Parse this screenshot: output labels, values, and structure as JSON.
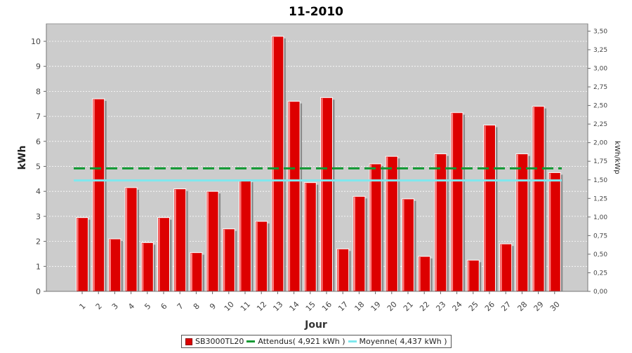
{
  "chart_data": {
    "type": "bar",
    "title": "11-2010",
    "xlabel": "Jour",
    "ylabel": "kWh",
    "y2label": "kWh/kWp",
    "ylim": [
      0,
      10.7
    ],
    "y2lim": [
      0,
      3.5982
    ],
    "yticks": [
      "0",
      "1",
      "2",
      "3",
      "4",
      "5",
      "6",
      "7",
      "8",
      "9",
      "10"
    ],
    "y2ticks": [
      "0,00",
      "0,25",
      "0,50",
      "0,75",
      "1,00",
      "1,25",
      "1,50",
      "1,75",
      "2,00",
      "2,25",
      "2,50",
      "2,75",
      "3,00",
      "3,25",
      "3,50"
    ],
    "categories": [
      "1",
      "2",
      "3",
      "4",
      "5",
      "6",
      "7",
      "8",
      "9",
      "10",
      "11",
      "12",
      "13",
      "14",
      "15",
      "16",
      "17",
      "18",
      "19",
      "20",
      "21",
      "22",
      "23",
      "24",
      "25",
      "26",
      "27",
      "28",
      "29",
      "30"
    ],
    "series": [
      {
        "name": "SB3000TL20",
        "values": [
          2.95,
          7.7,
          2.1,
          4.15,
          1.95,
          2.95,
          4.1,
          1.55,
          4.0,
          2.5,
          4.45,
          2.8,
          10.2,
          7.6,
          4.35,
          7.75,
          1.7,
          3.8,
          5.1,
          5.4,
          3.7,
          1.4,
          5.5,
          7.15,
          1.25,
          6.65,
          1.9,
          5.5,
          7.4,
          4.75
        ],
        "color": "#dd0000"
      }
    ],
    "reference_lines": [
      {
        "name": "Attendus",
        "value": 4.921,
        "color": "#119933",
        "style": "dashed"
      },
      {
        "name": "Moyenne",
        "value": 4.437,
        "color": "#7fe8ee",
        "style": "solid"
      }
    ],
    "legend": {
      "series_label": "SB3000TL20",
      "attendus_label": "Attendus( 4,921 kWh )",
      "moyenne_label": "Moyenne( 4,437 kWh )"
    },
    "grid": true,
    "legend_position": "bottom-center",
    "plot_background": "#cccccc"
  }
}
